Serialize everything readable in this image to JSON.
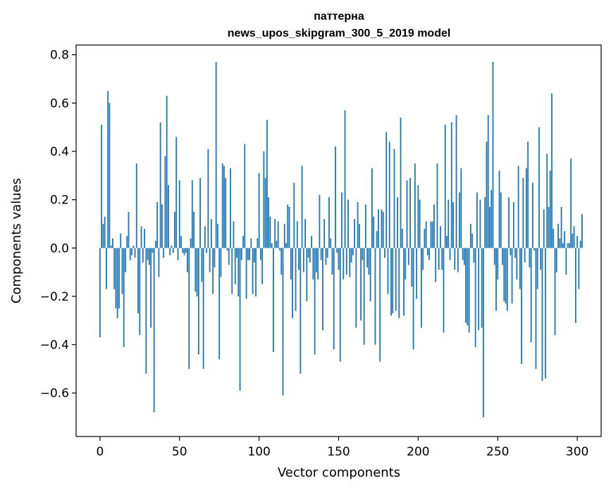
{
  "chart_data": {
    "type": "bar",
    "title_lines": [
      "паттерна",
      "news_upos_skipgram_300_5_2019 model"
    ],
    "xlabel": "Vector components",
    "ylabel": "Components values",
    "xlim": [
      -15,
      315
    ],
    "ylim": [
      -0.78,
      0.84
    ],
    "xticks": [
      0,
      50,
      100,
      150,
      200,
      250,
      300
    ],
    "yticks": [
      -0.6,
      -0.4,
      -0.2,
      0.0,
      0.2,
      0.4,
      0.6,
      0.8
    ],
    "ytick_labels": [
      "−0.6",
      "−0.4",
      "−0.2",
      "0.0",
      "0.2",
      "0.4",
      "0.6",
      "0.8"
    ],
    "bar_color": "#1f77b4",
    "grid": false,
    "values": [
      -0.37,
      0.51,
      0.1,
      0.13,
      -0.17,
      0.65,
      0.6,
      0.01,
      0.04,
      -0.17,
      -0.25,
      -0.29,
      -0.25,
      0.06,
      -0.19,
      -0.41,
      -0.1,
      0.05,
      0.15,
      -0.05,
      -0.03,
      0.01,
      -0.04,
      0.35,
      -0.27,
      -0.36,
      0.09,
      -0.06,
      0.08,
      -0.52,
      -0.05,
      -0.07,
      -0.33,
      -0.02,
      -0.68,
      0.03,
      0.19,
      -0.12,
      0.52,
      0.18,
      -0.04,
      0.38,
      0.63,
      0.26,
      -0.03,
      0.01,
      -0.02,
      0.15,
      0.46,
      -0.05,
      0.28,
      0.05,
      -0.02,
      -0.03,
      -0.02,
      -0.1,
      -0.5,
      0.04,
      0.28,
      0.15,
      -0.18,
      -0.2,
      -0.44,
      0.29,
      -0.14,
      -0.5,
      0.09,
      -0.02,
      0.41,
      -0.1,
      0.12,
      -0.19,
      -0.08,
      0.77,
      0.1,
      -0.46,
      -0.12,
      0.35,
      0.34,
      0.29,
      -0.01,
      -0.07,
      0.33,
      -0.19,
      0.11,
      -0.15,
      -0.04,
      -0.2,
      -0.59,
      -0.05,
      0.05,
      0.43,
      -0.21,
      -0.05,
      -0.05,
      0.04,
      -0.19,
      -0.06,
      -0.2,
      0.04,
      0.31,
      -0.05,
      -0.15,
      0.4,
      0.29,
      0.53,
      0.21,
      0.13,
      0.02,
      -0.43,
      0.12,
      0.03,
      0.11,
      -0.01,
      -0.11,
      -0.61,
      0.1,
      0.02,
      0.18,
      0.17,
      -0.13,
      -0.29,
      0.27,
      -0.26,
      0.11,
      -0.09,
      -0.52,
      0.34,
      -0.1,
      0.12,
      -0.22,
      -0.04,
      -0.06,
      0.05,
      -0.13,
      -0.44,
      -0.1,
      -0.13,
      0.22,
      -0.05,
      -0.34,
      0.12,
      -0.07,
      -0.04,
      0.21,
      0.04,
      -0.11,
      -0.42,
      0.42,
      -0.02,
      -0.09,
      -0.47,
      0.23,
      -0.13,
      0.57,
      -0.11,
      0.2,
      -0.12,
      -0.06,
      -0.03,
      0.12,
      -0.33,
      0.19,
      0.1,
      -0.3,
      -0.05,
      -0.4,
      0.18,
      -0.08,
      -0.11,
      -0.22,
      0.33,
      0.13,
      -0.4,
      0.07,
      0.16,
      -0.47,
      0.16,
      0.15,
      -0.04,
      0.48,
      -0.19,
      0.44,
      -0.28,
      -0.27,
      0.41,
      -0.26,
      0.21,
      -0.29,
      0.54,
      0.08,
      -0.28,
      -0.13,
      0.28,
      -0.07,
      0.29,
      -0.16,
      -0.42,
      0.35,
      -0.21,
      0.26,
      0.2,
      -0.33,
      -0.09,
      0.08,
      0.11,
      -0.03,
      -0.05,
      0.11,
      0.11,
      0.18,
      -0.14,
      0.35,
      -0.09,
      0.09,
      -0.09,
      -0.35,
      0.51,
      0.05,
      0.2,
      -0.05,
      0.52,
      0.19,
      -0.09,
      0.55,
      -0.1,
      0.23,
      0.33,
      -0.05,
      -0.07,
      -0.31,
      -0.32,
      -0.35,
      0.1,
      0.06,
      -0.06,
      -0.41,
      0.23,
      -0.34,
      0.2,
      -0.33,
      -0.7,
      0.21,
      0.44,
      0.55,
      0.17,
      0.24,
      0.77,
      -0.07,
      -0.26,
      -0.13,
      0.32,
      0.23,
      -0.07,
      -0.22,
      -0.23,
      -0.26,
      0.21,
      -0.03,
      -0.23,
      0.19,
      -0.04,
      -0.13,
      0.34,
      -0.17,
      -0.48,
      0.29,
      -0.06,
      0.33,
      0.44,
      -0.08,
      -0.39,
      0.27,
      -0.01,
      -0.5,
      -0.17,
      0.5,
      -0.09,
      -0.55,
      0.16,
      -0.54,
      0.39,
      0.17,
      0.32,
      0.64,
      0.08,
      -0.36,
      -0.1,
      0.1,
      0.04,
      0.17,
      0.02,
      0.07,
      -0.11,
      0.02,
      0.02,
      0.37,
      0.06,
      0.09,
      -0.31,
      0.05,
      -0.17,
      0.03,
      0.14
    ]
  }
}
